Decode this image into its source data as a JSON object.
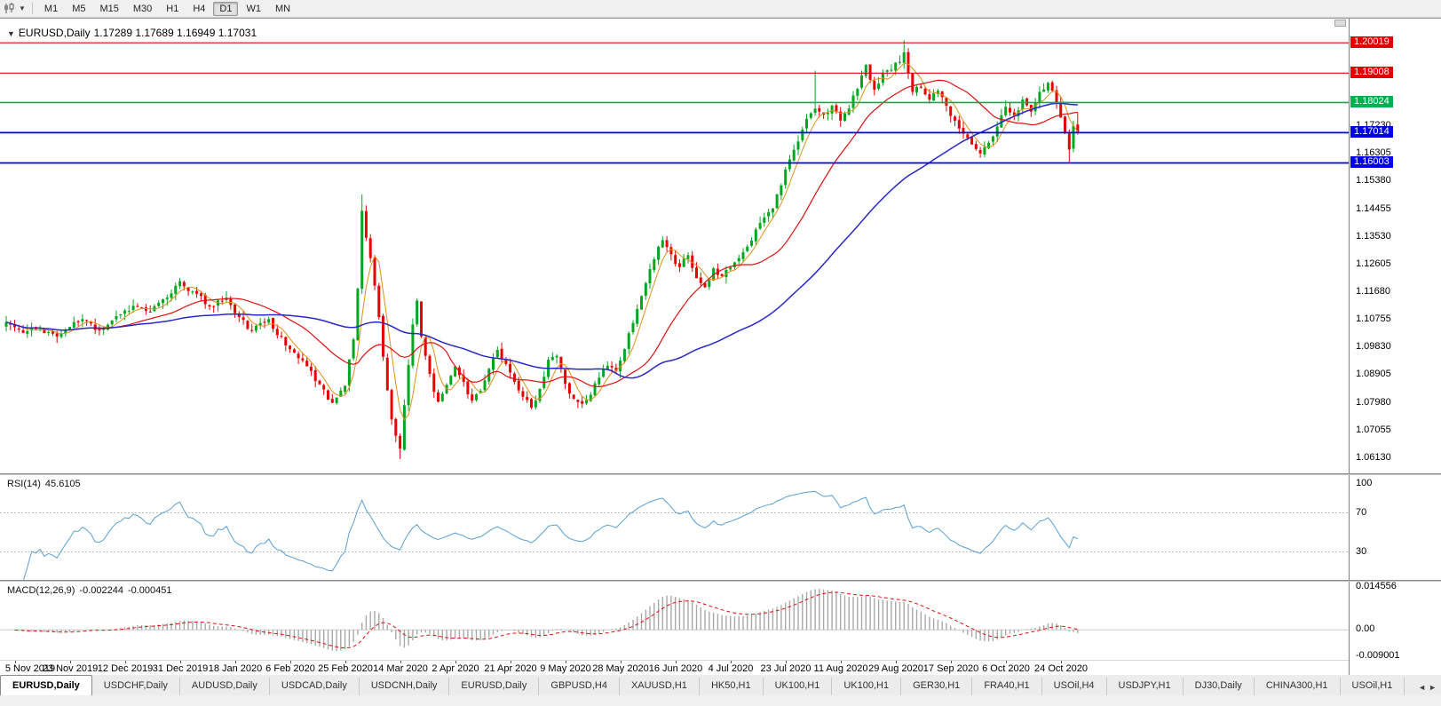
{
  "toolbar": {
    "caret": "▼",
    "timeframes": [
      "M1",
      "M5",
      "M15",
      "M30",
      "H1",
      "H4",
      "D1",
      "W1",
      "MN"
    ],
    "active_timeframe": "D1"
  },
  "chart_header": {
    "collapse_arrow": "▼",
    "symbol": "EURUSD,Daily",
    "ohlc": "1.17289 1.17689 1.16949 1.17031"
  },
  "price_axis": {
    "ticks": [
      1.1723,
      1.16305,
      1.1538,
      1.14455,
      1.1353,
      1.12605,
      1.1168,
      1.10755,
      1.0983,
      1.08905,
      1.0798,
      1.07055,
      1.0613
    ],
    "badges": [
      {
        "value": "1.20019",
        "color": "#e00000"
      },
      {
        "value": "1.19008",
        "color": "#e00000"
      },
      {
        "value": "1.18024",
        "color": "#00b050"
      },
      {
        "value": "1.17014",
        "color": "#0000e6"
      },
      {
        "value": "1.16003",
        "color": "#0000e6"
      }
    ]
  },
  "hlines": [
    {
      "value": 1.20019,
      "color": "#e00000",
      "width": 1.2
    },
    {
      "value": 1.19008,
      "color": "#e00000",
      "width": 1.2
    },
    {
      "value": 1.18024,
      "color": "#00b050",
      "width": 1.6
    },
    {
      "value": 1.17014,
      "color": "#0000e6",
      "width": 1.8
    },
    {
      "value": 1.16003,
      "color": "#0000e6",
      "width": 1.8
    }
  ],
  "rsi_panel": {
    "label": "RSI(14)",
    "value": "45.6105",
    "axis_labels": [
      100,
      70,
      30
    ],
    "levels": [
      70,
      30
    ],
    "range": [
      5,
      105
    ],
    "line_color": "#5a9fd4"
  },
  "macd_panel": {
    "label": "MACD(12,26,9)",
    "value_main": "-0.002244",
    "value_signal": "-0.000451",
    "axis_labels": [
      "0.014556",
      "0.00",
      "-0.009001"
    ],
    "range": [
      -0.009001,
      0.014556
    ],
    "hist_color": "#a8a8a8",
    "signal_color": "#e01010"
  },
  "date_axis": {
    "labels": [
      "5 Nov 2019",
      "23 Nov 2019",
      "12 Dec 2019",
      "31 Dec 2019",
      "18 Jan 2020",
      "6 Feb 2020",
      "25 Feb 2020",
      "14 Mar 2020",
      "2 Apr 2020",
      "21 Apr 2020",
      "9 May 2020",
      "28 May 2020",
      "16 Jun 2020",
      "4 Jul 2020",
      "23 Jul 2020",
      "11 Aug 2020",
      "29 Aug 2020",
      "17 Sep 2020",
      "6 Oct 2020",
      "24 Oct 2020"
    ],
    "start_index": 2,
    "step": 13
  },
  "tabs": {
    "items": [
      "EURUSD,Daily",
      "USDCHF,Daily",
      "AUDUSD,Daily",
      "USDCAD,Daily",
      "USDCNH,Daily",
      "EURUSD,Daily",
      "GBPUSD,H4",
      "XAUUSD,H1",
      "HK50,H1",
      "UK100,H1",
      "UK100,H1",
      "GER30,H1",
      "FRA40,H1",
      "USOil,H4",
      "USDJPY,H1",
      "DJ30,Daily",
      "CHINA300,H1",
      "USOil,H1"
    ],
    "active_index": 0,
    "scroll_left": "◄",
    "scroll_right": "►"
  },
  "chart_data": {
    "type": "candlestick",
    "symbol": "EURUSD",
    "timeframe": "Daily",
    "count": 254,
    "price_range": [
      1.058,
      1.2065
    ],
    "up_color": "#00a820",
    "down_color": "#e80000",
    "noise": 0.0011,
    "wick": 0.0022,
    "seed": 11,
    "close_keypoints": [
      [
        0,
        1.1068
      ],
      [
        4,
        1.1032
      ],
      [
        8,
        1.1048
      ],
      [
        12,
        1.102
      ],
      [
        15,
        1.1052
      ],
      [
        18,
        1.1078
      ],
      [
        22,
        1.104
      ],
      [
        26,
        1.1088
      ],
      [
        30,
        1.1122
      ],
      [
        34,
        1.1102
      ],
      [
        38,
        1.115
      ],
      [
        41,
        1.1205
      ],
      [
        44,
        1.117
      ],
      [
        48,
        1.112
      ],
      [
        52,
        1.115
      ],
      [
        54,
        1.1098
      ],
      [
        58,
        1.1038
      ],
      [
        62,
        1.1078
      ],
      [
        66,
        1.099
      ],
      [
        70,
        1.094
      ],
      [
        74,
        1.086
      ],
      [
        77,
        1.0798
      ],
      [
        80,
        1.0855
      ],
      [
        82,
        1.101
      ],
      [
        83,
        1.118
      ],
      [
        84,
        1.144
      ],
      [
        85,
        1.135
      ],
      [
        86,
        1.1282
      ],
      [
        87,
        1.119
      ],
      [
        88,
        1.1085
      ],
      [
        89,
        1.0952
      ],
      [
        90,
        1.084
      ],
      [
        91,
        1.0742
      ],
      [
        92,
        1.0688
      ],
      [
        93,
        1.0645
      ],
      [
        94,
        1.079
      ],
      [
        95,
        1.0925
      ],
      [
        96,
        1.106
      ],
      [
        97,
        1.114
      ],
      [
        98,
        1.102
      ],
      [
        99,
        1.0955
      ],
      [
        100,
        1.0895
      ],
      [
        101,
        1.0835
      ],
      [
        102,
        1.0802
      ],
      [
        104,
        1.0858
      ],
      [
        106,
        1.092
      ],
      [
        108,
        1.0868
      ],
      [
        110,
        1.0805
      ],
      [
        112,
        1.0838
      ],
      [
        114,
        1.0912
      ],
      [
        116,
        1.0975
      ],
      [
        118,
        1.0928
      ],
      [
        120,
        1.0868
      ],
      [
        122,
        1.0818
      ],
      [
        124,
        1.0782
      ],
      [
        126,
        1.0845
      ],
      [
        128,
        1.0942
      ],
      [
        130,
        1.0955
      ],
      [
        132,
        1.0862
      ],
      [
        134,
        1.0812
      ],
      [
        136,
        1.0795
      ],
      [
        138,
        1.0825
      ],
      [
        140,
        1.0882
      ],
      [
        142,
        1.0922
      ],
      [
        144,
        1.0905
      ],
      [
        146,
        1.0978
      ],
      [
        148,
        1.1065
      ],
      [
        150,
        1.1155
      ],
      [
        152,
        1.1245
      ],
      [
        154,
        1.132
      ],
      [
        155,
        1.1342
      ],
      [
        157,
        1.1295
      ],
      [
        159,
        1.1252
      ],
      [
        161,
        1.1292
      ],
      [
        163,
        1.1215
      ],
      [
        165,
        1.1185
      ],
      [
        167,
        1.1248
      ],
      [
        169,
        1.1222
      ],
      [
        171,
        1.1252
      ],
      [
        173,
        1.1282
      ],
      [
        175,
        1.132
      ],
      [
        177,
        1.1378
      ],
      [
        179,
        1.1418
      ],
      [
        181,
        1.1448
      ],
      [
        183,
        1.1525
      ],
      [
        185,
        1.1612
      ],
      [
        187,
        1.1672
      ],
      [
        189,
        1.1748
      ],
      [
        191,
        1.1782
      ],
      [
        193,
        1.1762
      ],
      [
        195,
        1.1792
      ],
      [
        197,
        1.1742
      ],
      [
        199,
        1.1782
      ],
      [
        201,
        1.1848
      ],
      [
        203,
        1.1928
      ],
      [
        205,
        1.1845
      ],
      [
        207,
        1.1902
      ],
      [
        209,
        1.1912
      ],
      [
        211,
        1.1938
      ],
      [
        212,
        1.197
      ],
      [
        214,
        1.1838
      ],
      [
        216,
        1.1852
      ],
      [
        218,
        1.1812
      ],
      [
        220,
        1.1842
      ],
      [
        222,
        1.1792
      ],
      [
        224,
        1.1742
      ],
      [
        226,
        1.1698
      ],
      [
        228,
        1.1662
      ],
      [
        230,
        1.1632
      ],
      [
        232,
        1.1668
      ],
      [
        234,
        1.1722
      ],
      [
        236,
        1.1788
      ],
      [
        238,
        1.1758
      ],
      [
        240,
        1.1812
      ],
      [
        242,
        1.1772
      ],
      [
        244,
        1.1838
      ],
      [
        246,
        1.1868
      ],
      [
        248,
        1.1802
      ],
      [
        249,
        1.1752
      ],
      [
        250,
        1.1702
      ],
      [
        251,
        1.1645
      ],
      [
        252,
        1.1725
      ],
      [
        253,
        1.17031
      ]
    ],
    "wick_overrides": {
      "84": {
        "h": 1.1495
      },
      "93": {
        "l": 1.061
      },
      "191": {
        "h": 1.1909
      },
      "212": {
        "h": 1.2011
      },
      "251": {
        "l": 1.1603
      }
    },
    "last_candle": [
      1.17289,
      1.17689,
      1.16949,
      1.17031
    ],
    "moving_averages": [
      {
        "period": 5,
        "color": "#e09018",
        "width": 1
      },
      {
        "period": 21,
        "color": "#e01010",
        "width": 1.2
      },
      {
        "period": 60,
        "color": "#2828c8",
        "width": 1.5
      }
    ],
    "rsi_period": 14,
    "macd_params": [
      12,
      26,
      9
    ]
  }
}
